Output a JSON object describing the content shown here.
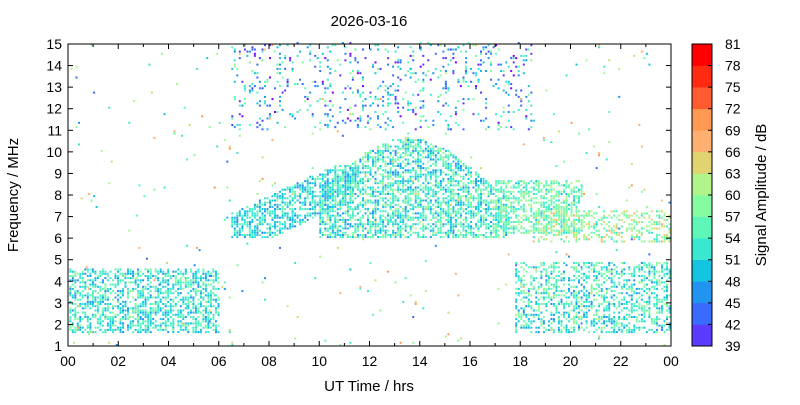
{
  "chart_data": {
    "type": "heatmap",
    "title": "2026-03-16",
    "xlabel": "UT Time / hrs",
    "ylabel": "Frequency / MHz",
    "colorbar_label": "Signal Amplitude / dB",
    "xlim": [
      0,
      24
    ],
    "ylim": [
      1,
      15
    ],
    "x_ticks": [
      "00",
      "02",
      "04",
      "06",
      "08",
      "10",
      "12",
      "14",
      "16",
      "18",
      "20",
      "22",
      "00"
    ],
    "y_ticks": [
      "1",
      "2",
      "3",
      "4",
      "5",
      "6",
      "7",
      "8",
      "9",
      "10",
      "11",
      "12",
      "13",
      "14",
      "15"
    ],
    "colorbar": {
      "min": 39,
      "max": 81,
      "ticks": [
        "39",
        "42",
        "45",
        "48",
        "51",
        "54",
        "57",
        "60",
        "63",
        "66",
        "69",
        "72",
        "75",
        "78",
        "81"
      ],
      "colors": [
        "#8000ff",
        "#5a3bff",
        "#3a6bff",
        "#2193f0",
        "#14c4e0",
        "#3ae8d0",
        "#5ef7b8",
        "#84fca0",
        "#b0f48a",
        "#e0d470",
        "#ffb070",
        "#ff9850",
        "#ff5a30",
        "#ff2a10",
        "#ff0000"
      ]
    },
    "regions": [
      {
        "name": "early-low",
        "x": [
          0.05,
          6.0
        ],
        "y": [
          1.6,
          4.6
        ],
        "amp": [
          48,
          60
        ],
        "density": 0.55
      },
      {
        "name": "morning-rise",
        "x": [
          6.5,
          11.5
        ],
        "y": [
          6.0,
          9.3
        ],
        "amp": [
          48,
          58
        ],
        "density": 0.6
      },
      {
        "name": "midday-peak",
        "x": [
          10,
          17.5
        ],
        "y": [
          6.0,
          10.8
        ],
        "amp": [
          48,
          62
        ],
        "density": 0.6
      },
      {
        "name": "afternoon-band",
        "x": [
          17,
          20.5
        ],
        "y": [
          6.2,
          8.6
        ],
        "amp": [
          52,
          64
        ],
        "density": 0.55
      },
      {
        "name": "evening-low",
        "x": [
          17.8,
          24
        ],
        "y": [
          1.6,
          4.8
        ],
        "amp": [
          48,
          62
        ],
        "density": 0.45
      },
      {
        "name": "evening-mid",
        "x": [
          18.5,
          24
        ],
        "y": [
          5.8,
          7.2
        ],
        "amp": [
          54,
          68
        ],
        "density": 0.35
      },
      {
        "name": "upper-sparse",
        "x": [
          6.5,
          18.5
        ],
        "y": [
          11.0,
          15.0
        ],
        "amp": [
          39,
          60
        ],
        "density": 0.12
      },
      {
        "name": "isolated",
        "x": [
          0,
          24
        ],
        "y": [
          1.0,
          15.0
        ],
        "amp": [
          45,
          72
        ],
        "density": 0.01
      }
    ]
  }
}
